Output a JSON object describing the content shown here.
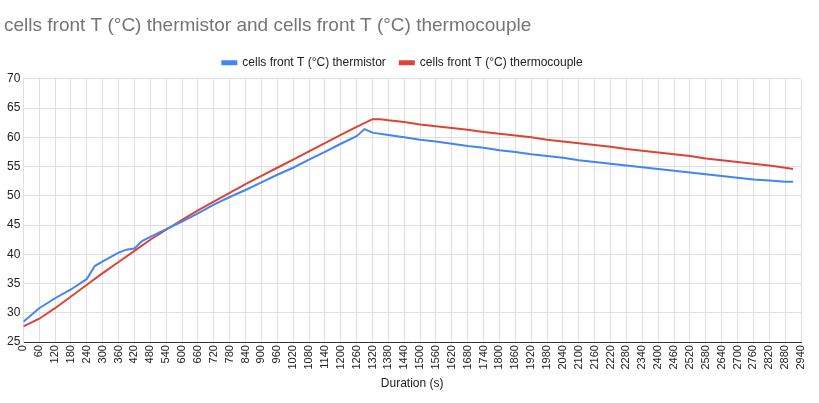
{
  "chart_data": {
    "type": "line",
    "title": "cells front T (°C) thermistor and cells front T (°C) thermocouple",
    "x_label": "Duration (s)",
    "legend": "top",
    "grid": true,
    "xlim": [
      0,
      2940
    ],
    "xticks": [
      0,
      60,
      120,
      180,
      240,
      300,
      360,
      420,
      480,
      540,
      600,
      660,
      720,
      780,
      840,
      900,
      960,
      1020,
      1080,
      1140,
      1200,
      1260,
      1320,
      1380,
      1440,
      1500,
      1560,
      1620,
      1680,
      1740,
      1800,
      1860,
      1920,
      1980,
      2040,
      2100,
      2160,
      2220,
      2280,
      2340,
      2400,
      2460,
      2520,
      2580,
      2640,
      2700,
      2760,
      2820,
      2880,
      2940
    ],
    "ylim": [
      25,
      70
    ],
    "yticks": [
      25,
      30,
      35,
      40,
      45,
      50,
      55,
      60,
      65,
      70
    ],
    "series": [
      {
        "name": "cells front T (°C) thermistor",
        "color": "#4285f4",
        "x": [
          0,
          60,
          120,
          180,
          240,
          270,
          300,
          360,
          390,
          420,
          450,
          480,
          540,
          600,
          660,
          720,
          780,
          840,
          900,
          960,
          1020,
          1080,
          1140,
          1200,
          1260,
          1290,
          1320,
          1380,
          1440,
          1500,
          1560,
          1620,
          1680,
          1740,
          1800,
          1860,
          1920,
          1980,
          2040,
          2100,
          2160,
          2220,
          2280,
          2340,
          2400,
          2460,
          2520,
          2580,
          2640,
          2700,
          2760,
          2820,
          2880,
          2910
        ],
        "values": [
          28.5,
          30.8,
          32.5,
          34.0,
          35.8,
          38.0,
          38.8,
          40.3,
          40.8,
          41.0,
          42.3,
          43.0,
          44.3,
          45.6,
          47.0,
          48.5,
          49.8,
          51.0,
          52.3,
          53.6,
          54.8,
          56.2,
          57.5,
          58.9,
          60.2,
          61.4,
          60.8,
          60.4,
          60.0,
          59.6,
          59.3,
          58.9,
          58.5,
          58.2,
          57.8,
          57.5,
          57.1,
          56.8,
          56.5,
          56.1,
          55.8,
          55.5,
          55.2,
          54.9,
          54.6,
          54.3,
          54.0,
          53.7,
          53.4,
          53.1,
          52.8,
          52.6,
          52.4,
          52.4
        ]
      },
      {
        "name": "cells front T (°C) thermocouple",
        "color": "#db4437",
        "x": [
          0,
          60,
          120,
          180,
          240,
          300,
          360,
          420,
          480,
          540,
          600,
          660,
          720,
          780,
          840,
          900,
          960,
          1020,
          1080,
          1140,
          1200,
          1260,
          1320,
          1350,
          1380,
          1440,
          1500,
          1560,
          1620,
          1680,
          1740,
          1800,
          1860,
          1920,
          1980,
          2040,
          2100,
          2160,
          2220,
          2280,
          2340,
          2400,
          2460,
          2520,
          2580,
          2640,
          2700,
          2760,
          2820,
          2880,
          2910
        ],
        "values": [
          27.7,
          29.0,
          30.8,
          32.8,
          34.8,
          36.8,
          38.7,
          40.6,
          42.5,
          44.2,
          45.9,
          47.5,
          49.0,
          50.5,
          52.0,
          53.4,
          54.8,
          56.2,
          57.6,
          59.0,
          60.4,
          61.8,
          63.1,
          63.1,
          62.9,
          62.6,
          62.2,
          61.9,
          61.6,
          61.3,
          60.9,
          60.6,
          60.3,
          60.0,
          59.6,
          59.3,
          59.0,
          58.7,
          58.4,
          58.0,
          57.7,
          57.4,
          57.1,
          56.8,
          56.4,
          56.1,
          55.8,
          55.5,
          55.2,
          54.8,
          54.6
        ]
      }
    ]
  }
}
